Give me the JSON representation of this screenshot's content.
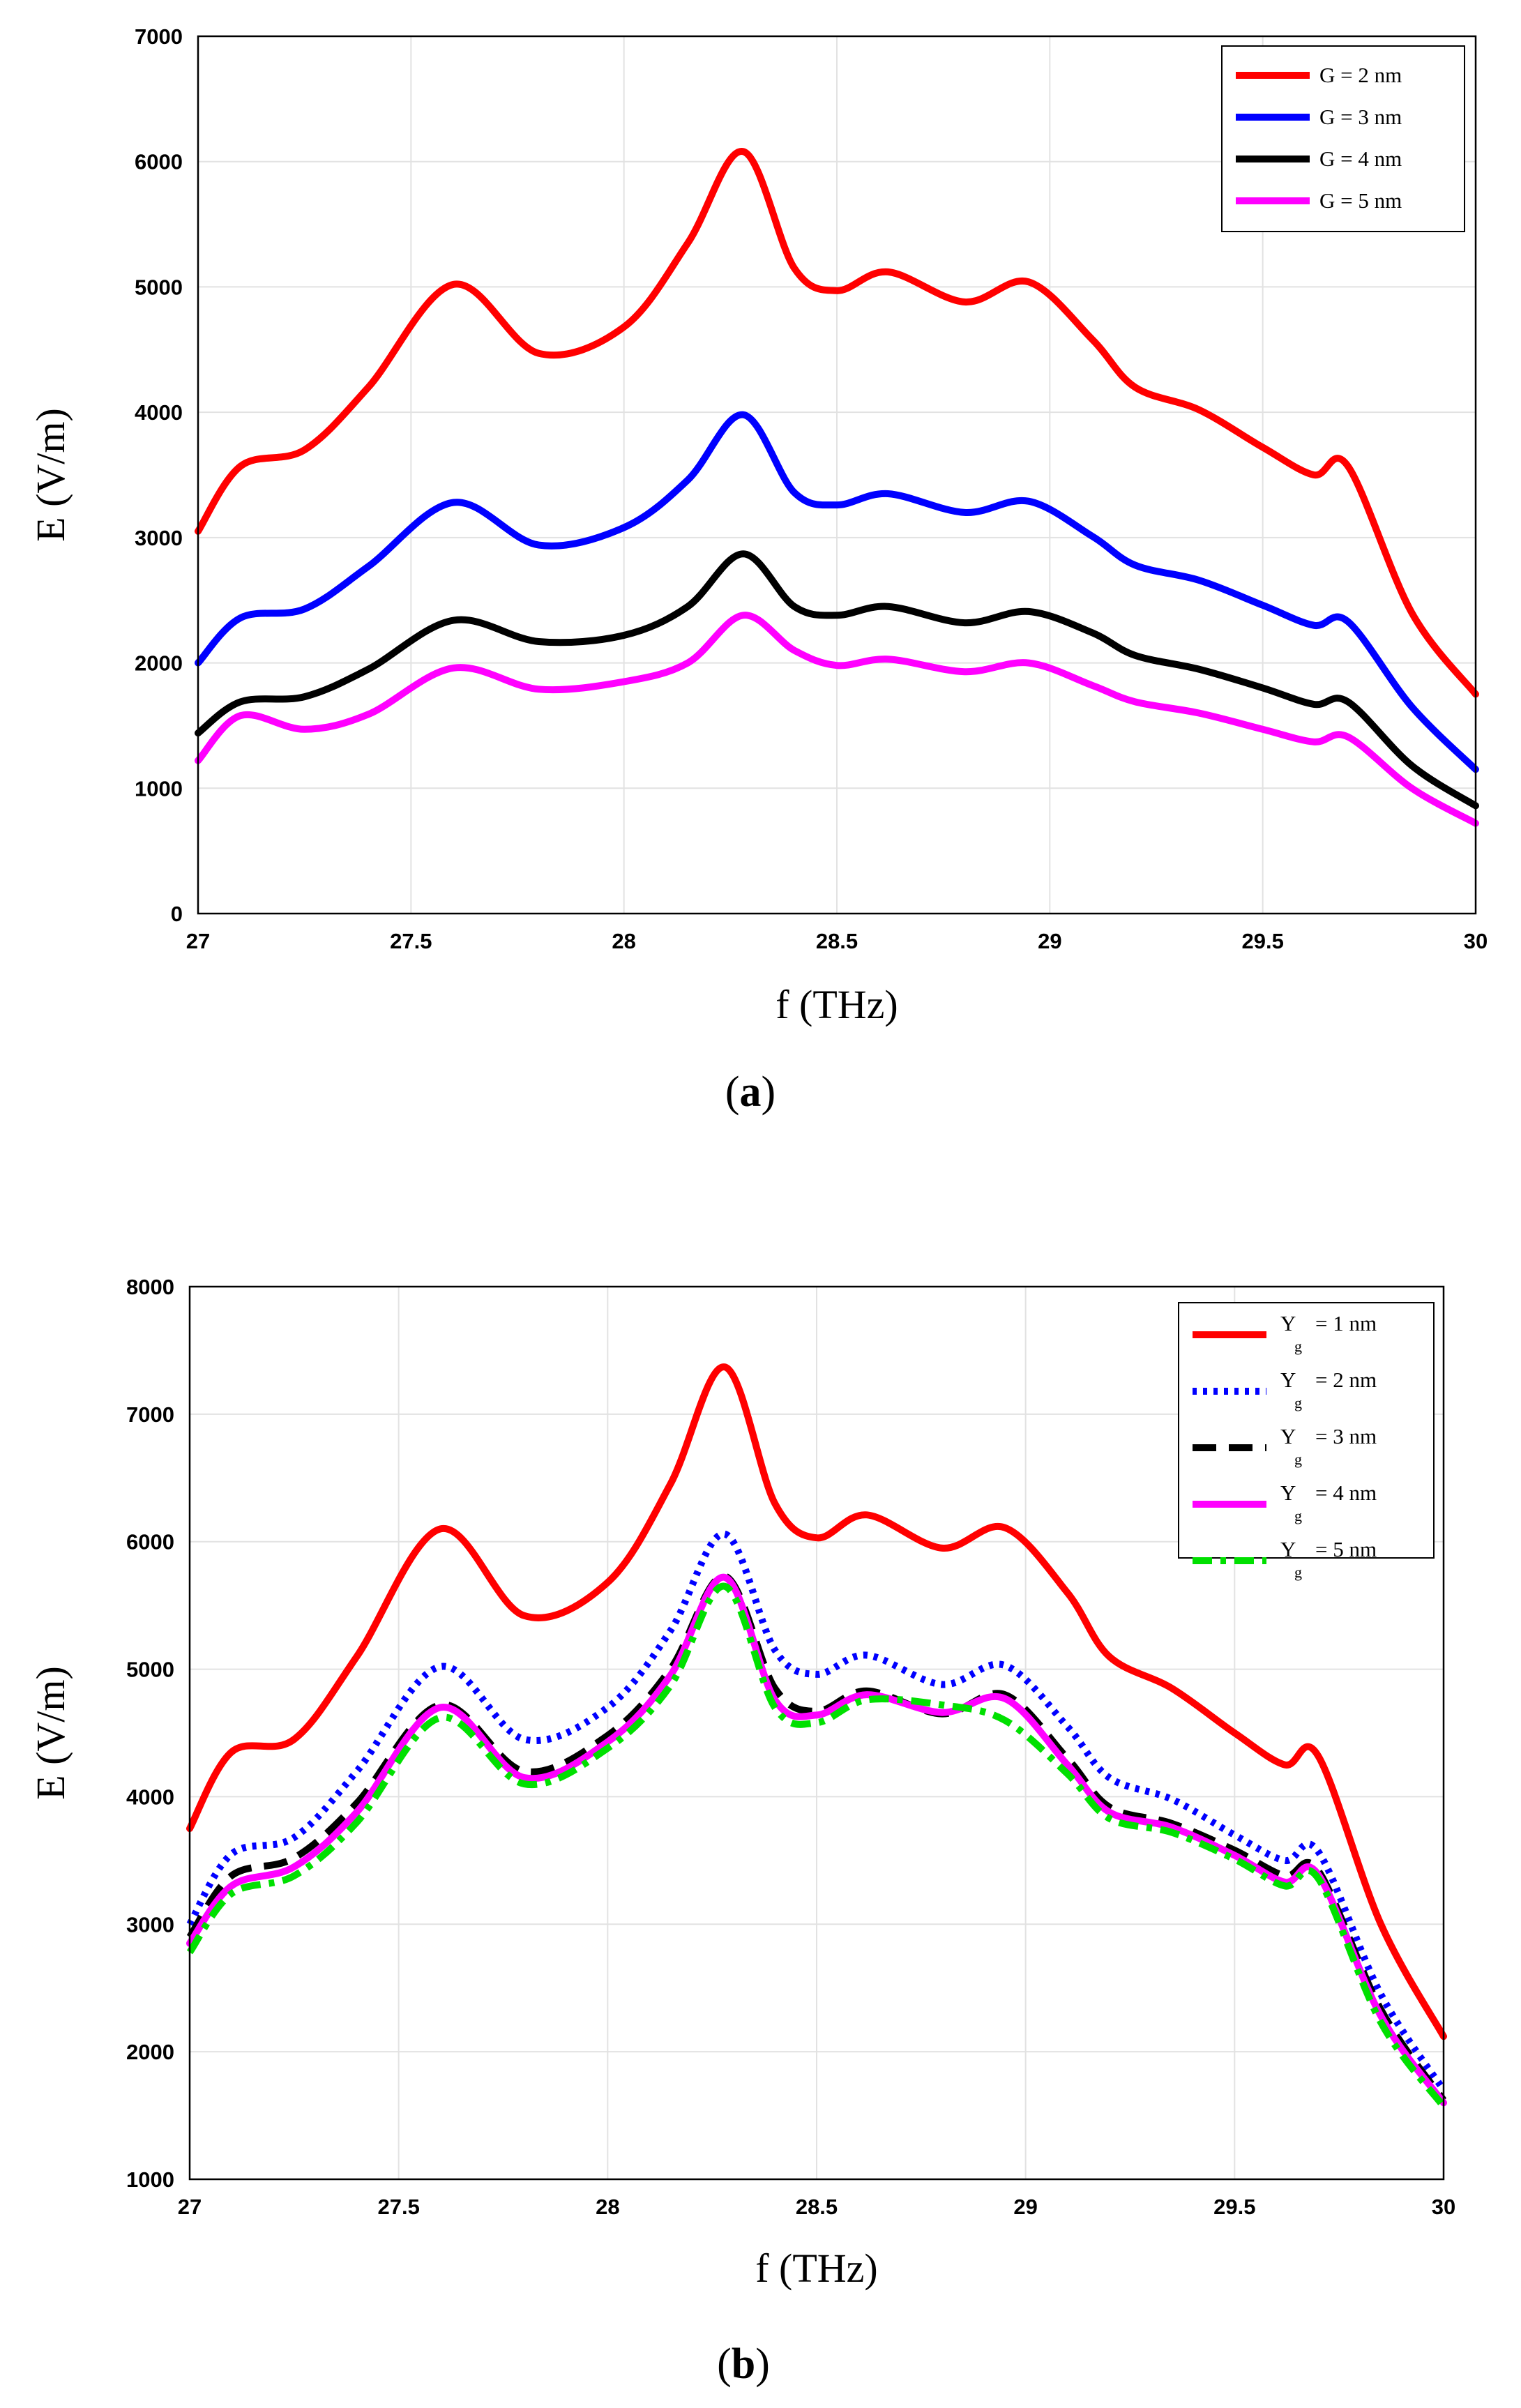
{
  "chart_data": [
    {
      "type": "line",
      "caption": "a",
      "xlabel": "f (THz)",
      "ylabel": "E (V/m)",
      "xlim": [
        27,
        30
      ],
      "ylim": [
        0,
        7000
      ],
      "xticks": [
        "27",
        "27.5",
        "28",
        "28.5",
        "29",
        "29.5",
        "30"
      ],
      "yticks": [
        "0",
        "1000",
        "2000",
        "3000",
        "4000",
        "5000",
        "6000",
        "7000"
      ],
      "grid": true,
      "legend_position": "top-right",
      "series": [
        {
          "name": "G = 2 nm",
          "color": "#ff0000",
          "style": "solid",
          "x": [
            27.0,
            27.1,
            27.25,
            27.4,
            27.6,
            27.8,
            28.0,
            28.15,
            28.28,
            28.4,
            28.5,
            28.62,
            28.8,
            28.95,
            29.1,
            29.2,
            29.35,
            29.5,
            29.62,
            29.7,
            29.85,
            30.0
          ],
          "y": [
            3050,
            3570,
            3700,
            4200,
            5020,
            4470,
            4680,
            5350,
            6080,
            5150,
            4970,
            5120,
            4880,
            5040,
            4580,
            4200,
            4020,
            3720,
            3500,
            3570,
            2400,
            1750
          ]
        },
        {
          "name": "G = 3 nm",
          "color": "#0000ff",
          "style": "solid",
          "x": [
            27.0,
            27.1,
            27.25,
            27.4,
            27.6,
            27.8,
            28.0,
            28.15,
            28.28,
            28.4,
            28.5,
            28.62,
            28.8,
            28.95,
            29.1,
            29.2,
            29.35,
            29.5,
            29.62,
            29.7,
            29.85,
            30.0
          ],
          "y": [
            2000,
            2360,
            2430,
            2770,
            3280,
            2940,
            3080,
            3460,
            3980,
            3360,
            3260,
            3350,
            3200,
            3290,
            3010,
            2780,
            2660,
            2460,
            2300,
            2330,
            1650,
            1150
          ]
        },
        {
          "name": "G = 4 nm",
          "color": "#000000",
          "style": "solid",
          "x": [
            27.0,
            27.1,
            27.25,
            27.4,
            27.6,
            27.8,
            28.0,
            28.15,
            28.28,
            28.4,
            28.5,
            28.62,
            28.8,
            28.95,
            29.1,
            29.2,
            29.35,
            29.5,
            29.62,
            29.7,
            29.85,
            30.0
          ],
          "y": [
            1440,
            1690,
            1730,
            1950,
            2340,
            2170,
            2220,
            2450,
            2870,
            2450,
            2380,
            2450,
            2320,
            2410,
            2240,
            2060,
            1950,
            1800,
            1670,
            1690,
            1180,
            860
          ]
        },
        {
          "name": "G = 5 nm",
          "color": "#ff00ff",
          "style": "solid",
          "x": [
            27.0,
            27.1,
            27.25,
            27.4,
            27.6,
            27.8,
            28.0,
            28.15,
            28.28,
            28.4,
            28.5,
            28.62,
            28.8,
            28.95,
            29.1,
            29.2,
            29.35,
            29.5,
            29.62,
            29.7,
            29.85,
            30.0
          ],
          "y": [
            1220,
            1580,
            1470,
            1590,
            1960,
            1790,
            1850,
            2000,
            2380,
            2100,
            1980,
            2030,
            1930,
            2000,
            1820,
            1690,
            1600,
            1470,
            1370,
            1410,
            1000,
            720
          ]
        }
      ]
    },
    {
      "type": "line",
      "caption": "b",
      "xlabel": "f (THz)",
      "ylabel": "E (V/m)",
      "xlim": [
        27,
        30
      ],
      "ylim": [
        1000,
        8000
      ],
      "xticks": [
        "27",
        "27.5",
        "28",
        "28.5",
        "29",
        "29.5",
        "30"
      ],
      "yticks": [
        "1000",
        "2000",
        "3000",
        "4000",
        "5000",
        "6000",
        "7000",
        "8000"
      ],
      "grid": true,
      "legend_position": "top-right",
      "series": [
        {
          "name_main": "Y",
          "name_sub": "g",
          "name_rest": "= 1 nm",
          "color": "#ff0000",
          "style": "solid",
          "x": [
            27.0,
            27.1,
            27.25,
            27.4,
            27.6,
            27.8,
            28.0,
            28.15,
            28.28,
            28.4,
            28.5,
            28.62,
            28.8,
            28.95,
            29.1,
            29.2,
            29.35,
            29.5,
            29.62,
            29.7,
            29.85,
            30.0
          ],
          "y": [
            3750,
            4350,
            4450,
            5100,
            6100,
            5420,
            5680,
            6450,
            7370,
            6300,
            6030,
            6210,
            5950,
            6110,
            5600,
            5100,
            4850,
            4500,
            4250,
            4320,
            3000,
            2120
          ]
        },
        {
          "name_main": "Y",
          "name_sub": "g",
          "name_rest": "= 2 nm",
          "color": "#0000ff",
          "style": "dotted",
          "x": [
            27.0,
            27.1,
            27.25,
            27.4,
            27.6,
            27.8,
            28.0,
            28.15,
            28.28,
            28.4,
            28.5,
            28.62,
            28.8,
            28.95,
            29.1,
            29.2,
            29.35,
            29.5,
            29.62,
            29.7,
            29.85,
            30.0
          ],
          "y": [
            3000,
            3550,
            3680,
            4200,
            5020,
            4450,
            4700,
            5300,
            6060,
            5150,
            4960,
            5110,
            4880,
            5030,
            4550,
            4150,
            3980,
            3700,
            3500,
            3570,
            2450,
            1700
          ]
        },
        {
          "name_main": "Y",
          "name_sub": "g",
          "name_rest": "= 3 nm",
          "color": "#000000",
          "style": "dashed",
          "x": [
            27.0,
            27.1,
            27.25,
            27.4,
            27.6,
            27.8,
            28.0,
            28.15,
            28.28,
            28.4,
            28.5,
            28.62,
            28.8,
            28.95,
            29.1,
            29.2,
            29.35,
            29.5,
            29.62,
            29.7,
            29.85,
            30.0
          ],
          "y": [
            2900,
            3380,
            3520,
            3950,
            4720,
            4200,
            4480,
            5000,
            5730,
            4850,
            4670,
            4830,
            4650,
            4800,
            4300,
            3920,
            3790,
            3580,
            3380,
            3420,
            2330,
            1620
          ]
        },
        {
          "name_main": "Y",
          "name_sub": "g",
          "name_rest": "= 4 nm",
          "color": "#ff00ff",
          "style": "solid",
          "x": [
            27.0,
            27.1,
            27.25,
            27.4,
            27.6,
            27.8,
            28.0,
            28.15,
            28.28,
            28.4,
            28.5,
            28.62,
            28.8,
            28.95,
            29.1,
            29.2,
            29.35,
            29.5,
            29.62,
            29.7,
            29.85,
            30.0
          ],
          "y": [
            2850,
            3300,
            3450,
            3880,
            4700,
            4150,
            4430,
            4950,
            5720,
            4760,
            4640,
            4800,
            4660,
            4770,
            4250,
            3880,
            3760,
            3540,
            3330,
            3390,
            2280,
            1600
          ]
        },
        {
          "name_main": "Y",
          "name_sub": "g",
          "name_rest": "= 5 nm",
          "color": "#00e000",
          "style": "dashdot",
          "x": [
            27.0,
            27.1,
            27.25,
            27.4,
            27.6,
            27.8,
            28.0,
            28.15,
            28.28,
            28.4,
            28.5,
            28.62,
            28.8,
            28.95,
            29.1,
            29.2,
            29.35,
            29.5,
            29.62,
            29.7,
            29.85,
            30.0
          ],
          "y": [
            2780,
            3240,
            3380,
            3800,
            4620,
            4100,
            4380,
            4870,
            5650,
            4700,
            4580,
            4760,
            4720,
            4600,
            4180,
            3830,
            3720,
            3510,
            3300,
            3360,
            2230,
            1570
          ]
        }
      ]
    }
  ]
}
